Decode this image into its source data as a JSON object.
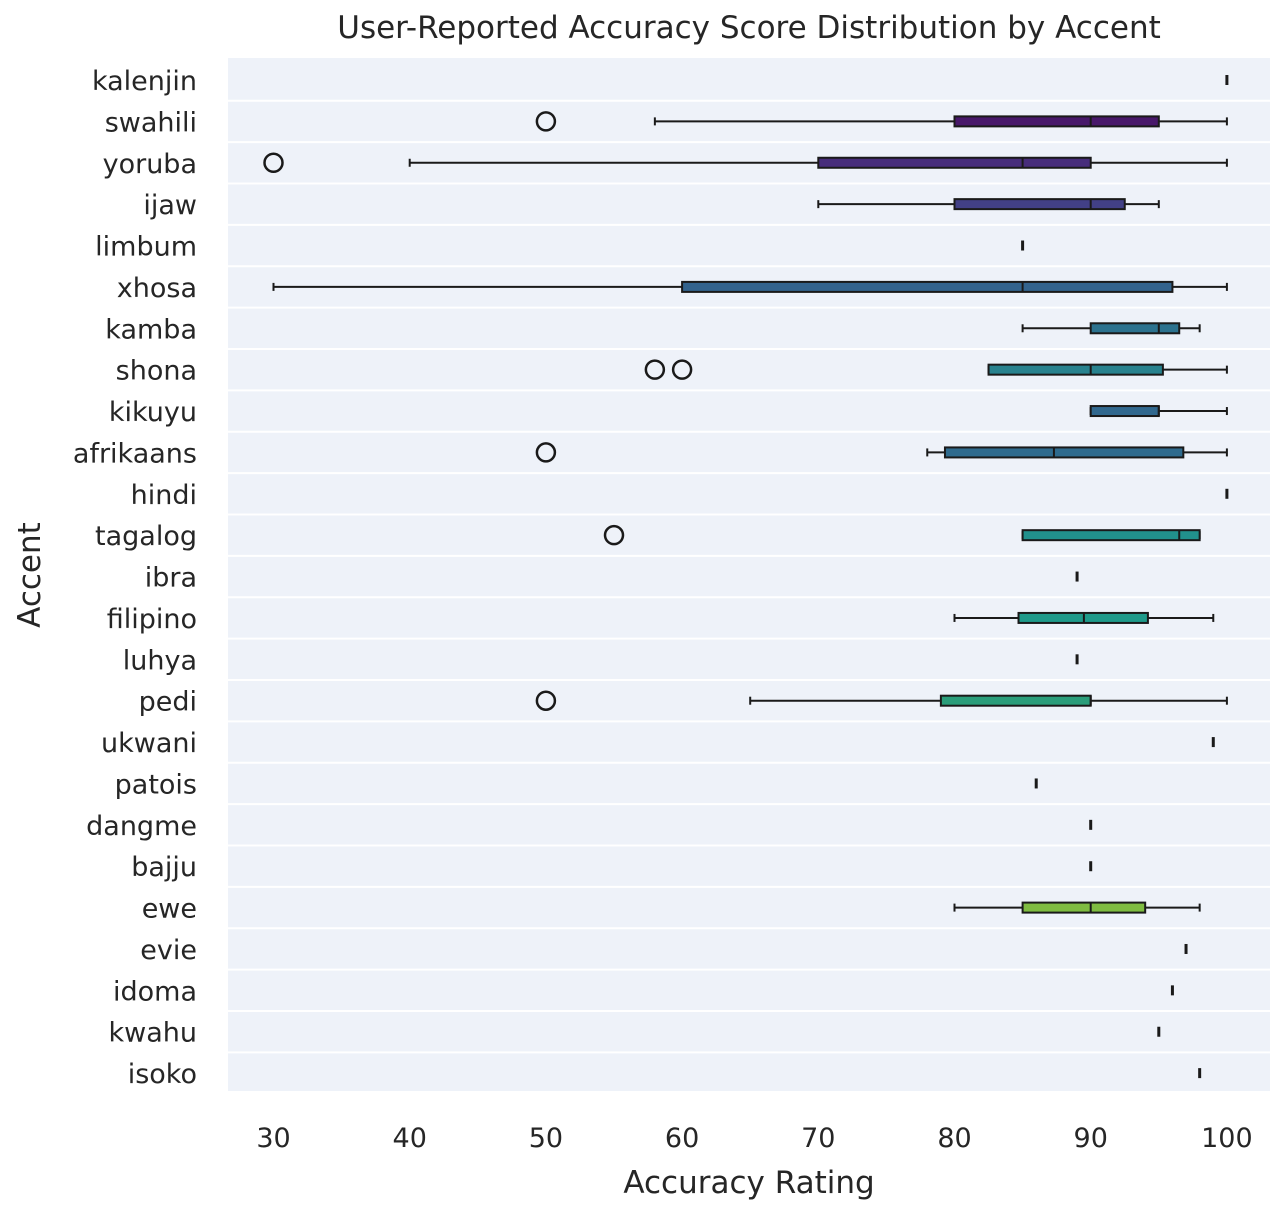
{
  "chart_data": {
    "type": "boxplot",
    "orientation": "horizontal",
    "title": "User-Reported Accuracy Score Distribution by Accent",
    "xlabel": "Accuracy Rating",
    "ylabel": "Accent",
    "xlim": [
      26.5,
      103.2
    ],
    "xticks": [
      "30",
      "40",
      "50",
      "60",
      "70",
      "80",
      "90",
      "100"
    ],
    "grid": true,
    "categories": [
      {
        "label": "kalenjin",
        "min": 100,
        "q1": 100,
        "median": 100,
        "q3": 100,
        "max": 100,
        "outliers": [],
        "color": "#440154"
      },
      {
        "label": "swahili",
        "min": 58,
        "q1": 80,
        "median": 90,
        "q3": 95,
        "max": 100,
        "outliers": [
          50
        ],
        "color": "#48186a"
      },
      {
        "label": "yoruba",
        "min": 40,
        "q1": 70,
        "median": 85,
        "q3": 90,
        "max": 100,
        "outliers": [
          30
        ],
        "color": "#472d7b"
      },
      {
        "label": "ijaw",
        "min": 70,
        "q1": 80,
        "median": 90,
        "q3": 92.5,
        "max": 95,
        "outliers": [],
        "color": "#424086"
      },
      {
        "label": "limbum",
        "min": 85,
        "q1": 85,
        "median": 85,
        "q3": 85,
        "max": 85,
        "outliers": [],
        "color": "#3b528b"
      },
      {
        "label": "xhosa",
        "min": 30,
        "q1": 60,
        "median": 85,
        "q3": 96,
        "max": 100,
        "outliers": [],
        "color": "#33638d"
      },
      {
        "label": "kamba",
        "min": 85,
        "q1": 90,
        "median": 95,
        "q3": 96.5,
        "max": 98,
        "outliers": [],
        "color": "#2c728e"
      },
      {
        "label": "shona",
        "min": 82.5,
        "q1": 82.5,
        "median": 90,
        "q3": 95.3,
        "max": 100,
        "outliers": [
          58,
          60
        ],
        "color": "#28828e"
      },
      {
        "label": "kikuyu",
        "min": 90,
        "q1": 90,
        "median": 95,
        "q3": 95,
        "max": 100,
        "outliers": [],
        "color": "#31688e"
      },
      {
        "label": "afrikaans",
        "min": 78,
        "q1": 79.3,
        "median": 87.3,
        "q3": 96.8,
        "max": 100,
        "outliers": [
          50
        ],
        "color": "#2f6b8e"
      },
      {
        "label": "hindi",
        "min": 100,
        "q1": 100,
        "median": 100,
        "q3": 100,
        "max": 100,
        "outliers": [],
        "color": "#277f8e"
      },
      {
        "label": "tagalog",
        "min": 85,
        "q1": 85,
        "median": 96.5,
        "q3": 98,
        "max": 98,
        "outliers": [
          55
        ],
        "color": "#21918c"
      },
      {
        "label": "ibra",
        "min": 89,
        "q1": 89,
        "median": 89,
        "q3": 89,
        "max": 89,
        "outliers": [],
        "color": "#1fa088"
      },
      {
        "label": "filipino",
        "min": 80,
        "q1": 84.7,
        "median": 89.5,
        "q3": 94.2,
        "max": 99,
        "outliers": [],
        "color": "#1f9a8a"
      },
      {
        "label": "luhya",
        "min": 89,
        "q1": 89,
        "median": 89,
        "q3": 89,
        "max": 89,
        "outliers": [],
        "color": "#22a884"
      },
      {
        "label": "pedi",
        "min": 65,
        "q1": 79,
        "median": 90,
        "q3": 90,
        "max": 100,
        "outliers": [
          50
        ],
        "color": "#2a9d7a"
      },
      {
        "label": "ukwani",
        "min": 99,
        "q1": 99,
        "median": 99,
        "q3": 99,
        "max": 99,
        "outliers": [],
        "color": "#35b779"
      },
      {
        "label": "patois",
        "min": 86,
        "q1": 86,
        "median": 86,
        "q3": 86,
        "max": 86,
        "outliers": [],
        "color": "#44bf70"
      },
      {
        "label": "dangme",
        "min": 90,
        "q1": 90,
        "median": 90,
        "q3": 90,
        "max": 90,
        "outliers": [],
        "color": "#54c568"
      },
      {
        "label": "bajju",
        "min": 90,
        "q1": 90,
        "median": 90,
        "q3": 90,
        "max": 90,
        "outliers": [],
        "color": "#66cb5d"
      },
      {
        "label": "ewe",
        "min": 80,
        "q1": 85,
        "median": 90,
        "q3": 94,
        "max": 98,
        "outliers": [],
        "color": "#7fbc41"
      },
      {
        "label": "evie",
        "min": 97,
        "q1": 97,
        "median": 97,
        "q3": 97,
        "max": 97,
        "outliers": [],
        "color": "#8fd744"
      },
      {
        "label": "idoma",
        "min": 96,
        "q1": 96,
        "median": 96,
        "q3": 96,
        "max": 96,
        "outliers": [],
        "color": "#a2da37"
      },
      {
        "label": "kwahu",
        "min": 95,
        "q1": 95,
        "median": 95,
        "q3": 95,
        "max": 95,
        "outliers": [],
        "color": "#b5de2b"
      },
      {
        "label": "isoko",
        "min": 98,
        "q1": 98,
        "median": 98,
        "q3": 98,
        "max": 98,
        "outliers": [],
        "color": "#c8e020"
      }
    ]
  }
}
